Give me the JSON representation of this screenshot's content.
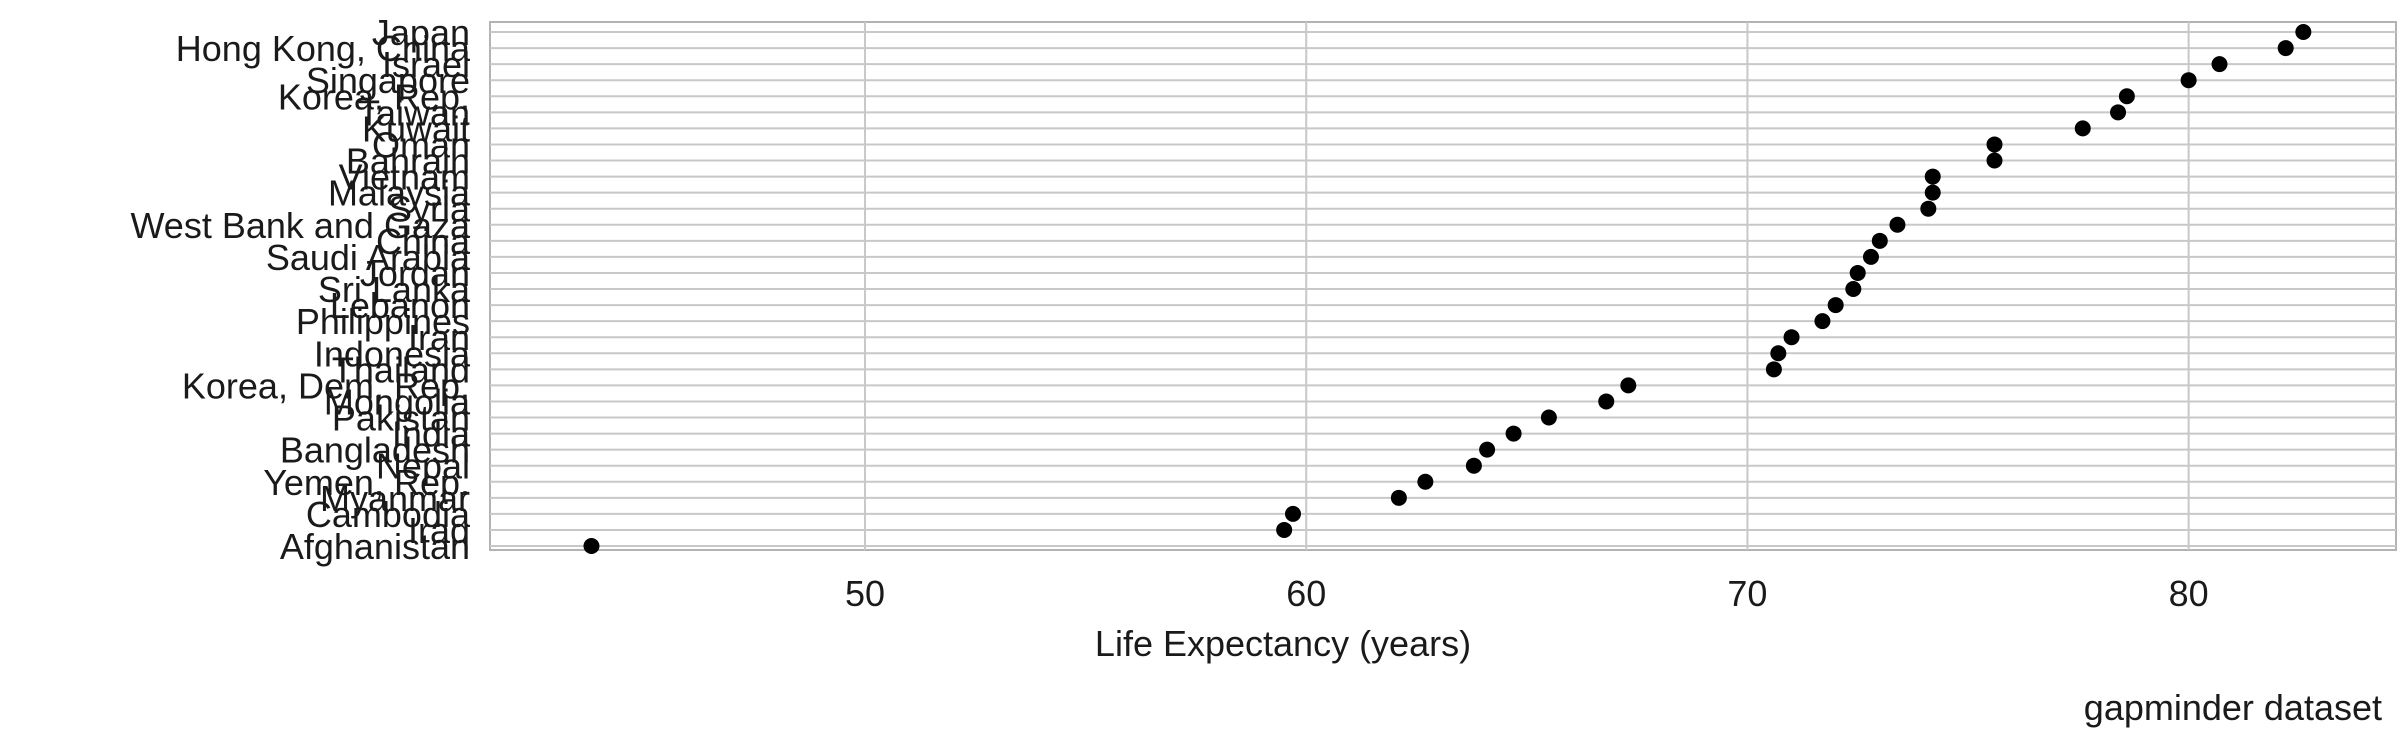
{
  "chart_data": {
    "type": "scatter",
    "title": "",
    "xlabel": "Life Expectancy (years)",
    "ylabel": "",
    "caption": "gapminder dataset",
    "xlim": [
      41.5,
      84.7
    ],
    "xticks": [
      50,
      60,
      70,
      80
    ],
    "grid": true,
    "categories": [
      "Afghanistan",
      "Iraq",
      "Cambodia",
      "Myanmar",
      "Yemen, Rep.",
      "Nepal",
      "Bangladesh",
      "India",
      "Pakistan",
      "Mongolia",
      "Korea, Dem. Rep.",
      "Thailand",
      "Indonesia",
      "Iran",
      "Philippines",
      "Lebanon",
      "Sri Lanka",
      "Jordan",
      "Saudi Arabia",
      "China",
      "West Bank and Gaza",
      "Syria",
      "Malaysia",
      "Vietnam",
      "Bahrain",
      "Oman",
      "Kuwait",
      "Taiwan",
      "Korea, Rep.",
      "Singapore",
      "Israel",
      "Hong Kong, China",
      "Japan"
    ],
    "values": [
      43.8,
      59.5,
      59.7,
      62.1,
      62.7,
      63.8,
      64.1,
      64.7,
      65.5,
      66.8,
      67.3,
      70.6,
      70.7,
      71.0,
      71.7,
      72.0,
      72.4,
      72.5,
      72.8,
      73.0,
      73.4,
      74.1,
      74.2,
      74.2,
      75.6,
      75.6,
      77.6,
      78.4,
      78.6,
      80.0,
      80.7,
      82.2,
      82.6
    ]
  }
}
